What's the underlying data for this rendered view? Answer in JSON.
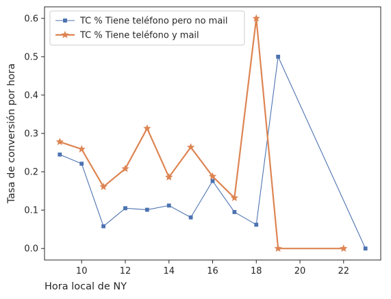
{
  "chart_data": {
    "type": "line",
    "xlabel": "Hora local de NY",
    "ylabel": "Tasa de conversión por hora",
    "xlim": [
      8.3,
      23.7
    ],
    "ylim": [
      -0.03,
      0.63
    ],
    "xticks": [
      10,
      12,
      14,
      16,
      18,
      20,
      22
    ],
    "yticks": [
      0.0,
      0.1,
      0.2,
      0.3,
      0.4,
      0.5,
      0.6
    ],
    "xtick_labels": [
      "10",
      "12",
      "14",
      "16",
      "18",
      "20",
      "22"
    ],
    "ytick_labels": [
      "0.0",
      "0.1",
      "0.2",
      "0.3",
      "0.4",
      "0.5",
      "0.6"
    ],
    "grid": false,
    "legend_position": "top-left",
    "series": [
      {
        "name": "TC % Tiene teléfono pero no mail",
        "color": "#4c72b0",
        "marker": "square",
        "x": [
          9,
          10,
          11,
          12,
          13,
          14,
          15,
          16,
          17,
          18,
          19,
          23
        ],
        "y": [
          0.245,
          0.221,
          0.058,
          0.105,
          0.101,
          0.112,
          0.081,
          0.176,
          0.095,
          0.062,
          0.5,
          0.0
        ]
      },
      {
        "name": "TC % Tiene teléfono y mail",
        "color": "#dd8452",
        "marker": "star",
        "x": [
          9,
          10,
          11,
          12,
          13,
          14,
          15,
          16,
          17,
          18,
          19,
          22
        ],
        "y": [
          0.278,
          0.259,
          0.161,
          0.208,
          0.313,
          0.186,
          0.264,
          0.188,
          0.132,
          0.6,
          0.0,
          0.0
        ]
      }
    ]
  }
}
